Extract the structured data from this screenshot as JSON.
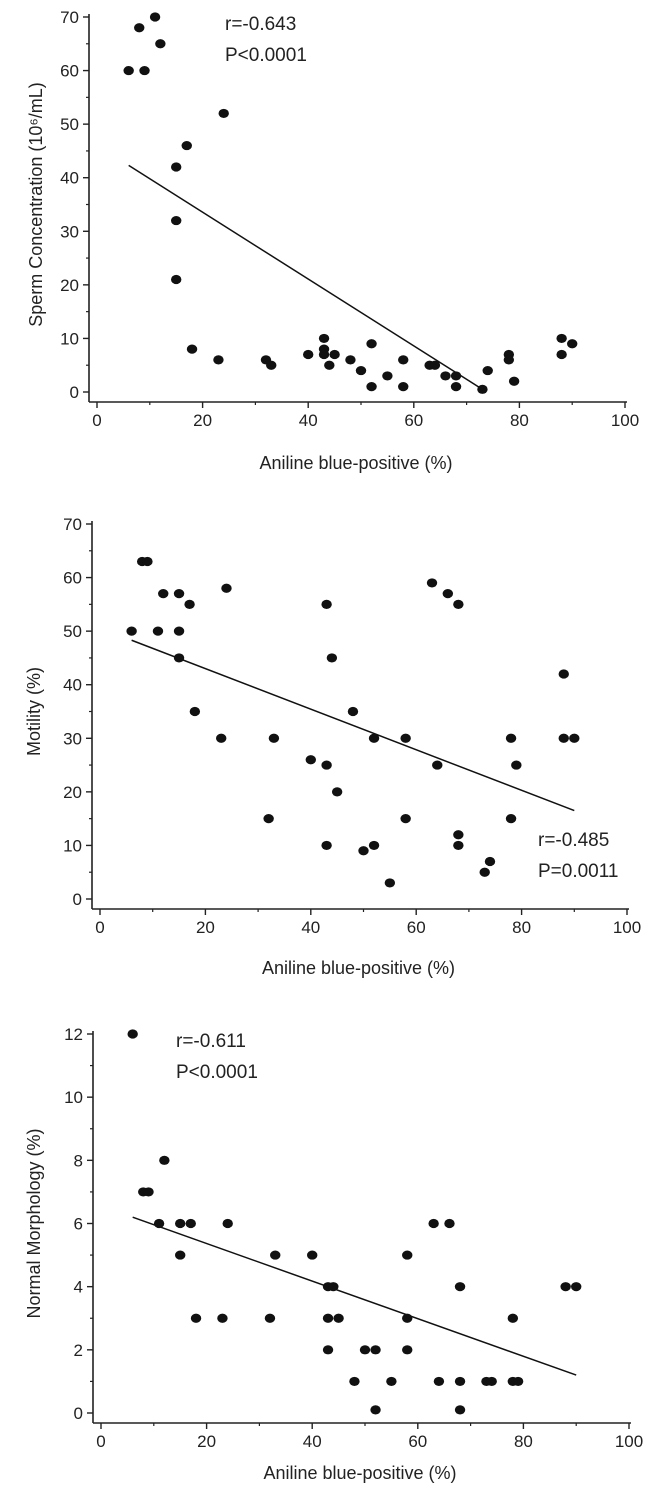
{
  "chart_data": [
    {
      "type": "scatter",
      "xlabel": "Aniline blue-positive (%)",
      "ylabel": "Sperm Concentration (10⁶/mL)",
      "xlim": [
        0,
        100
      ],
      "ylim": [
        0,
        70
      ],
      "xticks": [
        "0",
        "20",
        "40",
        "60",
        "80",
        "100"
      ],
      "yticks": [
        "0",
        "10",
        "20",
        "30",
        "40",
        "50",
        "60",
        "70"
      ],
      "annotation": [
        "r=-0.643",
        "P<0.0001"
      ],
      "annotation_position": "top-center",
      "points": [
        [
          6,
          60
        ],
        [
          8,
          68
        ],
        [
          9,
          60
        ],
        [
          11,
          70
        ],
        [
          12,
          65
        ],
        [
          15,
          42
        ],
        [
          15,
          32
        ],
        [
          15,
          21
        ],
        [
          17,
          46
        ],
        [
          18,
          8
        ],
        [
          23,
          6
        ],
        [
          24,
          52
        ],
        [
          32,
          6
        ],
        [
          33,
          5
        ],
        [
          40,
          7
        ],
        [
          43,
          10
        ],
        [
          43,
          8
        ],
        [
          43,
          7
        ],
        [
          44,
          5
        ],
        [
          45,
          7
        ],
        [
          48,
          6
        ],
        [
          50,
          4
        ],
        [
          52,
          9
        ],
        [
          52,
          1
        ],
        [
          55,
          3
        ],
        [
          58,
          6
        ],
        [
          58,
          1
        ],
        [
          63,
          5
        ],
        [
          64,
          5
        ],
        [
          66,
          3
        ],
        [
          68,
          3
        ],
        [
          68,
          1
        ],
        [
          73,
          0.5
        ],
        [
          74,
          4
        ],
        [
          78,
          7
        ],
        [
          78,
          6
        ],
        [
          79,
          2
        ],
        [
          88,
          10
        ],
        [
          88,
          7
        ],
        [
          90,
          9
        ]
      ],
      "trendline": {
        "x": [
          6,
          73
        ],
        "y": [
          42.3,
          0.5
        ]
      }
    },
    {
      "type": "scatter",
      "xlabel": "Aniline blue-positive (%)",
      "ylabel": "Motility (%)",
      "xlim": [
        0,
        100
      ],
      "ylim": [
        0,
        70
      ],
      "xticks": [
        "0",
        "20",
        "40",
        "60",
        "80",
        "100"
      ],
      "yticks": [
        "0",
        "10",
        "20",
        "30",
        "40",
        "50",
        "60",
        "70"
      ],
      "annotation": [
        "r=-0.485",
        "P=0.0011"
      ],
      "annotation_position": "bottom-right",
      "points": [
        [
          6,
          50
        ],
        [
          8,
          63
        ],
        [
          9,
          63
        ],
        [
          11,
          50
        ],
        [
          12,
          57
        ],
        [
          15,
          57
        ],
        [
          15,
          50
        ],
        [
          15,
          45
        ],
        [
          17,
          55
        ],
        [
          18,
          35
        ],
        [
          23,
          30
        ],
        [
          24,
          58
        ],
        [
          32,
          15
        ],
        [
          33,
          30
        ],
        [
          40,
          26
        ],
        [
          43,
          55
        ],
        [
          43,
          25
        ],
        [
          43,
          10
        ],
        [
          44,
          45
        ],
        [
          45,
          20
        ],
        [
          48,
          35
        ],
        [
          50,
          9
        ],
        [
          52,
          30
        ],
        [
          52,
          10
        ],
        [
          55,
          3
        ],
        [
          58,
          30
        ],
        [
          58,
          15
        ],
        [
          63,
          59
        ],
        [
          64,
          25
        ],
        [
          66,
          57
        ],
        [
          68,
          55
        ],
        [
          68,
          12
        ],
        [
          68,
          10
        ],
        [
          73,
          5
        ],
        [
          74,
          7
        ],
        [
          78,
          30
        ],
        [
          78,
          15
        ],
        [
          79,
          25
        ],
        [
          88,
          42
        ],
        [
          88,
          30
        ],
        [
          90,
          30
        ]
      ],
      "trendline": {
        "x": [
          6,
          90
        ],
        "y": [
          48.3,
          16.5
        ]
      }
    },
    {
      "type": "scatter",
      "xlabel": "Aniline blue-positive (%)",
      "ylabel": "Normal Morphology (%)",
      "xlim": [
        0,
        100
      ],
      "ylim": [
        0,
        12
      ],
      "xticks": [
        "0",
        "20",
        "40",
        "60",
        "80",
        "100"
      ],
      "yticks": [
        "0",
        "2",
        "4",
        "6",
        "8",
        "10",
        "12"
      ],
      "annotation": [
        "r=-0.611",
        "P<0.0001"
      ],
      "annotation_position": "top-left",
      "points": [
        [
          6,
          12
        ],
        [
          8,
          7
        ],
        [
          9,
          7
        ],
        [
          11,
          6
        ],
        [
          12,
          8
        ],
        [
          15,
          6
        ],
        [
          15,
          5
        ],
        [
          17,
          6
        ],
        [
          18,
          3
        ],
        [
          23,
          3
        ],
        [
          24,
          6
        ],
        [
          32,
          3
        ],
        [
          33,
          5
        ],
        [
          40,
          5
        ],
        [
          43,
          4
        ],
        [
          43,
          3
        ],
        [
          43,
          2
        ],
        [
          44,
          4
        ],
        [
          45,
          3
        ],
        [
          48,
          1
        ],
        [
          50,
          2
        ],
        [
          52,
          2
        ],
        [
          52,
          0.1
        ],
        [
          55,
          1
        ],
        [
          58,
          5
        ],
        [
          58,
          3
        ],
        [
          58,
          2
        ],
        [
          63,
          6
        ],
        [
          64,
          1
        ],
        [
          66,
          6
        ],
        [
          68,
          4
        ],
        [
          68,
          1
        ],
        [
          68,
          0.1
        ],
        [
          73,
          1
        ],
        [
          74,
          1
        ],
        [
          78,
          3
        ],
        [
          78,
          1
        ],
        [
          79,
          1
        ],
        [
          88,
          4
        ],
        [
          90,
          4
        ]
      ],
      "trendline": {
        "x": [
          6,
          90
        ],
        "y": [
          6.2,
          1.2
        ]
      }
    }
  ]
}
